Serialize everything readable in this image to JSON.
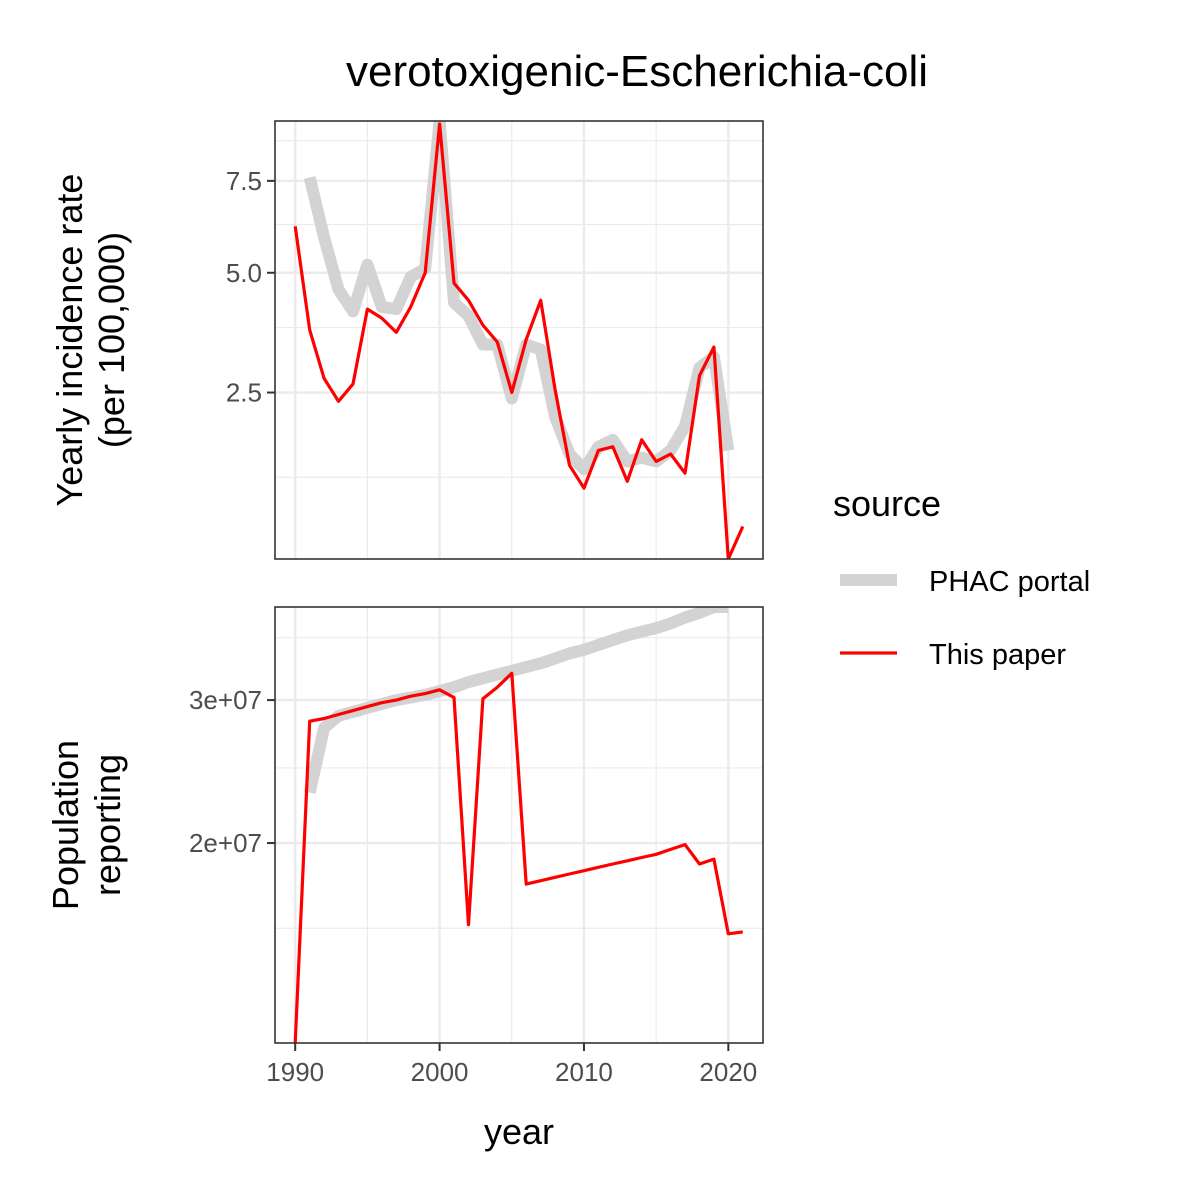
{
  "chart_data": {
    "type": "line",
    "title": "verotoxigenic-Escherichia-coli",
    "xlabel": "year",
    "x_ticks": [
      1990,
      2000,
      2010,
      2020
    ],
    "x_tick_labels": [
      "1990",
      "2000",
      "2010",
      "2020"
    ],
    "xlim": [
      1988.6,
      2022.4
    ],
    "legend": {
      "title": "source",
      "position": "right",
      "entries": [
        {
          "label": "PHAC portal",
          "color": "#d3d3d3"
        },
        {
          "label": "This paper",
          "color": "#ff0000"
        }
      ]
    },
    "panels": [
      {
        "ylabel_lines": [
          "Yearly incidence rate",
          "(per 100,000)"
        ],
        "y_scale": "sqrt",
        "ylim": [
          0.45,
          9.4
        ],
        "y_ticks": [
          2.5,
          5.0,
          7.5
        ],
        "y_tick_labels": [
          "2.5",
          "5.0",
          "7.5"
        ],
        "y_minor": [
          1.25,
          3.75,
          6.25,
          8.75
        ],
        "series": [
          {
            "name": "PHAC portal",
            "color": "#d3d3d3",
            "x": [
              1991,
              1992,
              1993,
              1994,
              1995,
              1996,
              1997,
              1998,
              1999,
              2000,
              2001,
              2002,
              2003,
              2004,
              2005,
              2006,
              2007,
              2008,
              2009,
              2010,
              2011,
              2012,
              2013,
              2014,
              2015,
              2016,
              2017,
              2018,
              2019,
              2020
            ],
            "y": [
              7.6,
              5.9,
              4.6,
              4.1,
              5.2,
              4.2,
              4.15,
              4.9,
              5.1,
              9.4,
              4.3,
              4.0,
              3.4,
              3.4,
              2.4,
              3.4,
              3.3,
              2.1,
              1.55,
              1.35,
              1.65,
              1.75,
              1.45,
              1.5,
              1.45,
              1.6,
              1.95,
              2.95,
              3.15,
              1.6
            ]
          },
          {
            "name": "This paper",
            "color": "#ff0000",
            "x": [
              1990,
              1991,
              1992,
              1993,
              1994,
              1995,
              1996,
              1997,
              1998,
              1999,
              2000,
              2001,
              2002,
              2003,
              2004,
              2005,
              2006,
              2007,
              2008,
              2009,
              2010,
              2011,
              2012,
              2013,
              2014,
              2015,
              2016,
              2017,
              2018,
              2019,
              2020,
              2021
            ],
            "y": [
              6.2,
              3.7,
              2.75,
              2.35,
              2.65,
              4.15,
              3.95,
              3.65,
              4.2,
              5.0,
              9.3,
              4.75,
              4.35,
              3.8,
              3.45,
              2.5,
              3.5,
              4.35,
              2.55,
              1.4,
              1.12,
              1.6,
              1.65,
              1.2,
              1.75,
              1.45,
              1.55,
              1.3,
              2.8,
              3.35,
              0.45,
              0.72
            ]
          }
        ]
      },
      {
        "ylabel_lines": [
          "Population",
          "reporting"
        ],
        "y_scale": "sqrt",
        "ylim": [
          9400000,
          37600000
        ],
        "y_ticks": [
          20000000,
          30000000
        ],
        "y_tick_labels": [
          "2e+07",
          "3e+07"
        ],
        "y_minor": [
          15000000,
          25000000,
          35000000
        ],
        "series": [
          {
            "name": "PHAC portal",
            "color": "#d3d3d3",
            "x": [
              1991,
              1992,
              1993,
              1994,
              1995,
              1996,
              1997,
              1998,
              1999,
              2000,
              2001,
              2002,
              2003,
              2004,
              2005,
              2006,
              2007,
              2008,
              2009,
              2010,
              2011,
              2012,
              2013,
              2014,
              2015,
              2016,
              2017,
              2018,
              2019,
              2020
            ],
            "y": [
              23300000,
              27900000,
              28800000,
              29100000,
              29400000,
              29700000,
              30000000,
              30200000,
              30400000,
              30700000,
              31000000,
              31400000,
              31700000,
              32000000,
              32300000,
              32600000,
              32900000,
              33300000,
              33700000,
              34000000,
              34400000,
              34800000,
              35200000,
              35500000,
              35800000,
              36200000,
              36700000,
              37100000,
              37600000,
              37600000
            ]
          },
          {
            "name": "This paper",
            "color": "#ff0000",
            "x": [
              1990,
              1991,
              1992,
              1993,
              1994,
              1995,
              1996,
              1997,
              1998,
              1999,
              2000,
              2001,
              2002,
              2003,
              2004,
              2005,
              2006,
              2007,
              2008,
              2009,
              2010,
              2011,
              2012,
              2013,
              2014,
              2015,
              2016,
              2017,
              2018,
              2019,
              2020,
              2021
            ],
            "y": [
              9400000,
              28400000,
              28600000,
              28900000,
              29200000,
              29500000,
              29800000,
              30000000,
              30300000,
              30500000,
              30800000,
              30200000,
              15200000,
              30100000,
              31000000,
              32100000,
              17500000,
              17700000,
              17900000,
              18100000,
              18300000,
              18500000,
              18700000,
              18900000,
              19100000,
              19300000,
              19600000,
              19900000,
              18700000,
              19000000,
              14700000,
              14800000
            ]
          }
        ]
      }
    ]
  }
}
